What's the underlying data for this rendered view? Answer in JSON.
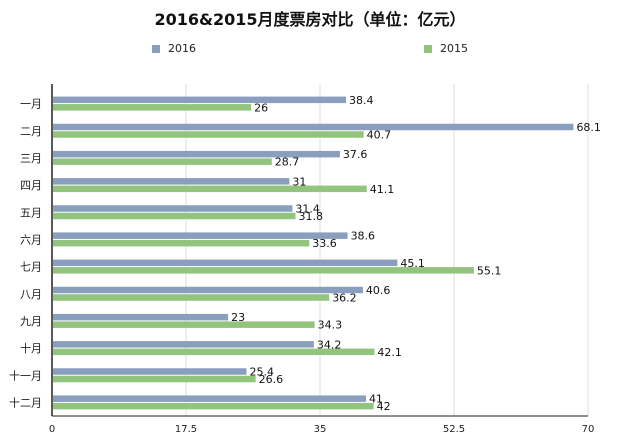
{
  "chart_data": {
    "type": "bar",
    "orientation": "horizontal",
    "title": "2016&2015月度票房对比（单位：亿元）",
    "categories": [
      "一月",
      "二月",
      "三月",
      "四月",
      "五月",
      "六月",
      "七月",
      "八月",
      "九月",
      "十月",
      "十一月",
      "十二月"
    ],
    "series": [
      {
        "name": "2016",
        "color": "#8a9fbd",
        "values": [
          38.4,
          68.1,
          37.6,
          31,
          31.4,
          38.6,
          45.1,
          40.6,
          23,
          34.2,
          25.4,
          41
        ]
      },
      {
        "name": "2015",
        "color": "#93c47d",
        "values": [
          26,
          40.7,
          28.7,
          41.1,
          31.8,
          33.6,
          55.1,
          36.2,
          34.3,
          42.1,
          26.6,
          42
        ]
      }
    ],
    "xlim": [
      0,
      70
    ],
    "xticks": [
      "0",
      "17.5",
      "35",
      "52.5",
      "70"
    ],
    "grid": true,
    "legend_position": "top"
  }
}
